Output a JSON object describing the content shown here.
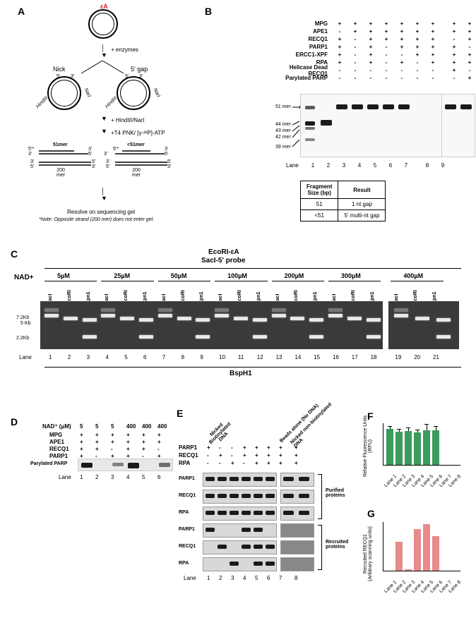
{
  "panelA": {
    "label": "A",
    "ea": "εA",
    "enzymes": "+ enzymes",
    "nick": "Nick",
    "gap5": "5' gap",
    "hindiii": "HindIII",
    "nari": "NarI",
    "five": "5'",
    "three": "3'",
    "step2": "+ HindIII/NarI",
    "step3": "+T4 PNK/ [γ-³²P]-ATP",
    "mer51": "51mer",
    "mer51lt": "<51mer",
    "mer200a": "200",
    "mer200b": "mer",
    "resolve": "Resolve on sequencing gel",
    "note": "*Note: Opposite strand (200 mer) does not enter gel."
  },
  "panelB": {
    "label": "B",
    "proteins": [
      "MPG",
      "APE1",
      "RECQ1",
      "PARP1",
      "ERCC1-XPF",
      "RPA",
      "Helicase Dead RECQ1",
      "Parylated PARP"
    ],
    "matrix": [
      [
        "+",
        "+",
        "+",
        "+",
        "+",
        "+",
        "+",
        "+",
        "+"
      ],
      [
        "-",
        "+",
        "+",
        "+",
        "+",
        "+",
        "+",
        "+",
        "+"
      ],
      [
        "+",
        "-",
        "+",
        "+",
        "+",
        "+",
        "+",
        "-",
        "+"
      ],
      [
        "+",
        "-",
        "+",
        "-",
        "+",
        "+",
        "+",
        "+",
        "-"
      ],
      [
        "+",
        "-",
        "+",
        "-",
        "-",
        "+",
        "+",
        "+",
        "+"
      ],
      [
        "+",
        "-",
        "+",
        "-",
        "+",
        "-",
        "+",
        "+",
        "+"
      ],
      [
        "-",
        "-",
        "-",
        "-",
        "-",
        "-",
        "-",
        "+",
        "-"
      ],
      [
        "-",
        "-",
        "-",
        "-",
        "-",
        "-",
        "-",
        "-",
        "+"
      ]
    ],
    "sizeLabels": [
      "51 mer",
      "44 mer",
      "43 mer",
      "42 mer",
      "39 mer"
    ],
    "lanesLabel": "Lane",
    "lanes": [
      "1",
      "2",
      "3",
      "4",
      "5",
      "6",
      "7",
      "8",
      "9"
    ],
    "table": {
      "h1": "Fragment\nSize (bp)",
      "h2": "Result",
      "r1c1": "51",
      "r1c2": "1 nt gap",
      "r2c1": "<51",
      "r2c2": "5' multi-nt gap"
    }
  },
  "panelC": {
    "label": "C",
    "title1": "EcoRI-εA",
    "title2": "SacI-5' probe",
    "nad": "NAD+",
    "concs": [
      "5µM",
      "25µM",
      "50µM",
      "100µM",
      "200µM",
      "300µM",
      "400µM"
    ],
    "enzymes": [
      "SacI",
      "EcoRI",
      "Kpn1"
    ],
    "sizes": [
      "7.2Kb",
      "5 Kb",
      "2.2Kb"
    ],
    "lanesLabel": "Lane",
    "lanes": [
      "1",
      "2",
      "3",
      "4",
      "5",
      "6",
      "7",
      "8",
      "9",
      "10",
      "11",
      "12",
      "13",
      "14",
      "15",
      "16",
      "17",
      "18",
      "19",
      "20",
      "21"
    ],
    "bsph1": "BspH1"
  },
  "panelD": {
    "label": "D",
    "nadLabel": "NAD⁺ (μM)",
    "nadVals": [
      "5",
      "5",
      "5",
      "400",
      "400",
      "400"
    ],
    "proteins": [
      "MPG",
      "APE1",
      "RECQ1",
      "PARP1"
    ],
    "matrix": [
      [
        "+",
        "+",
        "+",
        "+",
        "+",
        "+"
      ],
      [
        "+",
        "+",
        "+",
        "+",
        "+",
        "+"
      ],
      [
        "+",
        "+",
        "-",
        "+",
        "+",
        "-"
      ],
      [
        "+",
        "-",
        "+",
        "+",
        "-",
        "+"
      ]
    ],
    "parylated": "Parylated PARP",
    "laneLabel": "Lane",
    "lanes": [
      "1",
      "2",
      "3",
      "4",
      "5",
      "6"
    ]
  },
  "panelE": {
    "label": "E",
    "header1a": "Nicked",
    "header1b": "Biotinylated",
    "header1c": "DNA",
    "header2": "Beads alone (No DNA)",
    "header3a": "Nicked non-biotinylated",
    "header3b": "DNA",
    "proteins": [
      "PARP1",
      "RECQ1",
      "RPA"
    ],
    "matrix": [
      [
        "+",
        "-",
        "-",
        "+",
        "+",
        "+",
        "+",
        "+"
      ],
      [
        "-",
        "+",
        "-",
        "+",
        "+",
        "+",
        "+",
        "+"
      ],
      [
        "-",
        "-",
        "+",
        "-",
        "+",
        "+",
        "+",
        "+"
      ]
    ],
    "rowLabels": [
      "PARP1",
      "RECQ1",
      "RPA",
      "PARP1",
      "RECQ1",
      "RPA"
    ],
    "group1": "Purified\nproteins",
    "group2": "Recruited\nproteins",
    "laneLabel": "Lane",
    "lanes": [
      "1",
      "2",
      "3",
      "4",
      "5",
      "6",
      "7",
      "8"
    ]
  },
  "panelF": {
    "label": "F",
    "ylabel": "Relative Fluorescence Units\n(RFU)",
    "values": [
      85,
      78,
      80,
      76,
      82,
      81,
      0,
      0
    ],
    "errors": [
      6,
      7,
      9,
      8,
      14,
      11,
      0,
      0
    ],
    "color": "#3a9b5c",
    "xlabels": [
      "Lane 1",
      "Lane 2",
      "Lane 3",
      "Lane 4",
      "Lane 5",
      "Lane 6",
      "Lane 7",
      "Lane 8"
    ]
  },
  "panelG": {
    "label": "G",
    "ylabel": "Recruited RECQ1\n(Arbitrary scanning units)",
    "values": [
      0,
      58,
      3,
      85,
      95,
      70,
      0,
      0
    ],
    "color": "#e88b8b",
    "xlabels": [
      "Lane 1",
      "Lane 2",
      "Lane 3",
      "Lane 4",
      "Lane 5",
      "Lane 6",
      "Lane 7",
      "Lane 8"
    ]
  }
}
